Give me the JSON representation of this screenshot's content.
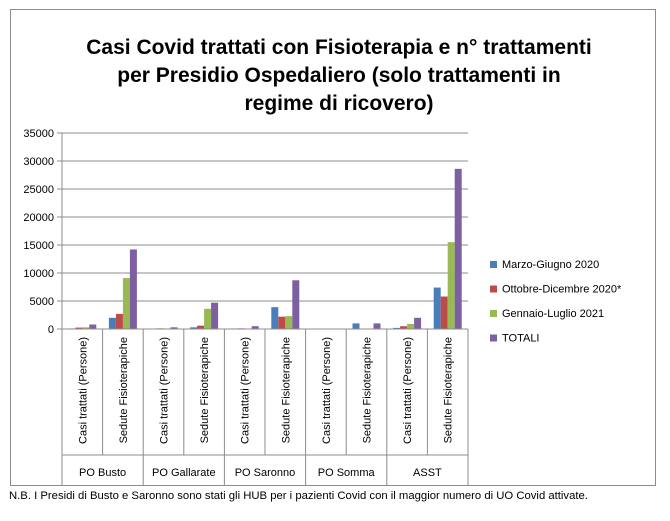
{
  "chart_data": {
    "type": "bar",
    "title_lines": [
      "Casi Covid trattati con Fisioterapia e n° trattamenti",
      "per Presidio Ospedaliero (solo trattamenti in",
      "regime di ricovero)"
    ],
    "ylim": [
      0,
      35000
    ],
    "yticks": [
      0,
      5000,
      10000,
      15000,
      20000,
      25000,
      30000,
      35000
    ],
    "grid": true,
    "legend_position": "right",
    "groups": [
      "PO Busto",
      "PO Gallarate",
      "PO Saronno",
      "PO Somma",
      "ASST"
    ],
    "subcategories": [
      "Casi trattati (Persone)",
      "Sedute Fisioterapiche"
    ],
    "series": [
      {
        "name": "Marzo-Giugno 2020",
        "color": "#4a7ebb",
        "values": [
          [
            100,
            2000
          ],
          [
            80,
            300
          ],
          [
            100,
            3900
          ],
          [
            0,
            1000
          ],
          [
            200,
            7400
          ]
        ]
      },
      {
        "name": "Ottobre-Dicembre 2020*",
        "color": "#be4b48",
        "values": [
          [
            250,
            2700
          ],
          [
            120,
            600
          ],
          [
            120,
            2200
          ],
          [
            0,
            0
          ],
          [
            500,
            5800
          ]
        ]
      },
      {
        "name": "Gennaio-Luglio 2021",
        "color": "#98b954",
        "values": [
          [
            300,
            9100
          ],
          [
            100,
            3600
          ],
          [
            80,
            2300
          ],
          [
            0,
            0
          ],
          [
            900,
            15500
          ]
        ]
      },
      {
        "name": "TOTALI",
        "color": "#7d60a0",
        "values": [
          [
            800,
            14200
          ],
          [
            300,
            4700
          ],
          [
            500,
            8700
          ],
          [
            0,
            1000
          ],
          [
            2000,
            28600
          ]
        ]
      }
    ]
  },
  "footnote": "N.B. I Presidi di Busto e Saronno sono stati gli HUB per i pazienti Covid con il maggior numero di UO Covid attivate."
}
